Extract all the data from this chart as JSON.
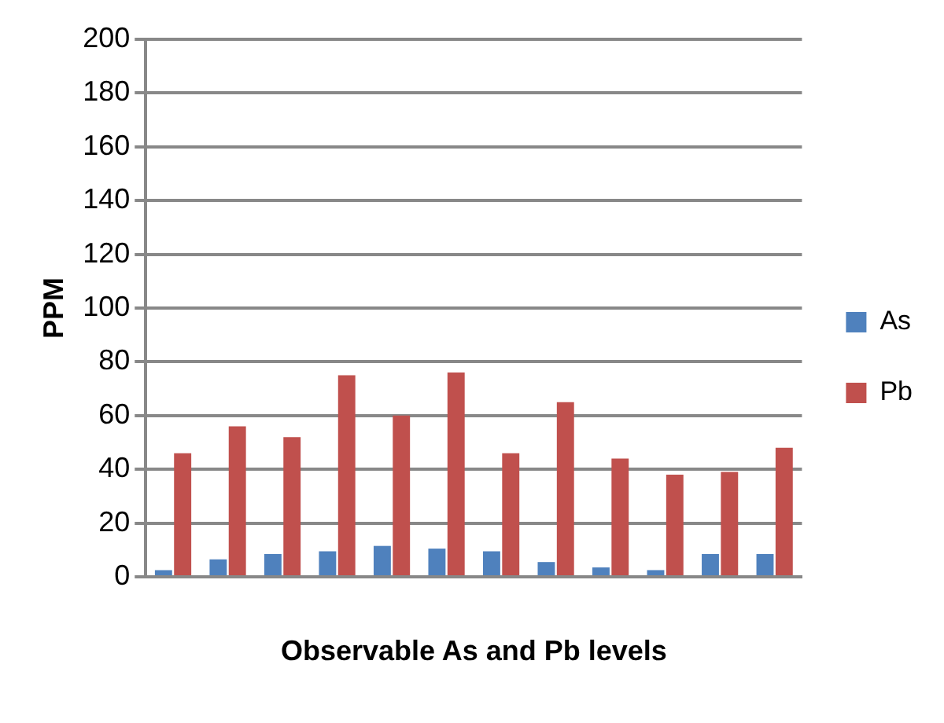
{
  "chart_data": {
    "type": "bar",
    "xlabel": "Observable As and Pb levels",
    "ylabel": "PPM",
    "categories": [
      null,
      null,
      null,
      null,
      null,
      null,
      null,
      null,
      null,
      null,
      null,
      null
    ],
    "series": [
      {
        "name": "As",
        "color": "#4f81bd",
        "values": [
          2.5,
          6.5,
          8.5,
          9.5,
          11.5,
          10.5,
          9.5,
          5.5,
          3.5,
          2.5,
          8.5,
          8.5
        ]
      },
      {
        "name": "Pb",
        "color": "#c0504d",
        "values": [
          46,
          56,
          52,
          75,
          60,
          76,
          46,
          65,
          44,
          38,
          39,
          48
        ]
      }
    ],
    "ylim": [
      0,
      200
    ],
    "yticks": [
      0,
      20,
      40,
      60,
      80,
      100,
      120,
      140,
      160,
      180,
      200
    ],
    "grid": "y",
    "legend": "right"
  }
}
